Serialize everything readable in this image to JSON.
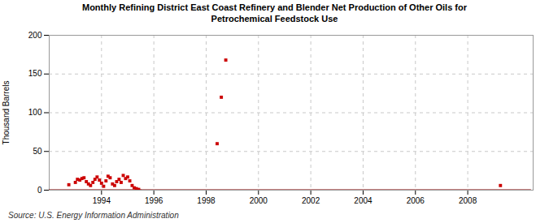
{
  "chart_data": {
    "type": "scatter",
    "title": "Monthly Refining District East Coast Refinery and Blender Net Production of Other Oils for\nPetrochemical Feedstock Use",
    "y_label": "Thousand Barrels",
    "source": "Source: U.S. Energy Information Administration",
    "xlim": [
      1992.0,
      2010.5
    ],
    "xticks": [
      1994,
      1996,
      1998,
      2000,
      2002,
      2004,
      2006,
      2008
    ],
    "ylim": [
      0,
      200
    ],
    "yticks": [
      0,
      50,
      100,
      150,
      200
    ],
    "grid": true,
    "series": [
      {
        "type": "line",
        "color": "#8b0000",
        "x": [
          1995.5,
          2010.4
        ],
        "values": [
          0,
          0
        ]
      },
      {
        "type": "line",
        "color": "#8b0000",
        "x": [
          1992.0,
          1995.5
        ],
        "values": [
          0,
          0
        ]
      },
      {
        "type": "scatter",
        "color": "#cc0000",
        "marker": "square",
        "x": [
          1992.75,
          1993.0,
          1993.08,
          1993.17,
          1993.25,
          1993.33,
          1993.42,
          1993.5,
          1993.58,
          1993.67,
          1993.75,
          1993.83,
          1993.92,
          1994.0,
          1994.08,
          1994.17,
          1994.25,
          1994.33,
          1994.42,
          1994.5,
          1994.58,
          1994.67,
          1994.75,
          1994.83,
          1994.92,
          1995.0,
          1995.08,
          1995.17,
          1995.25,
          1995.33,
          1995.42,
          1998.42,
          1998.58,
          1998.75,
          2009.25
        ],
        "values": [
          7,
          10,
          14,
          13,
          15,
          16,
          11,
          8,
          6,
          10,
          14,
          17,
          13,
          9,
          5,
          12,
          18,
          16,
          8,
          6,
          11,
          14,
          10,
          19,
          15,
          17,
          12,
          6,
          3,
          2,
          1,
          60,
          120,
          168,
          6
        ]
      }
    ]
  }
}
